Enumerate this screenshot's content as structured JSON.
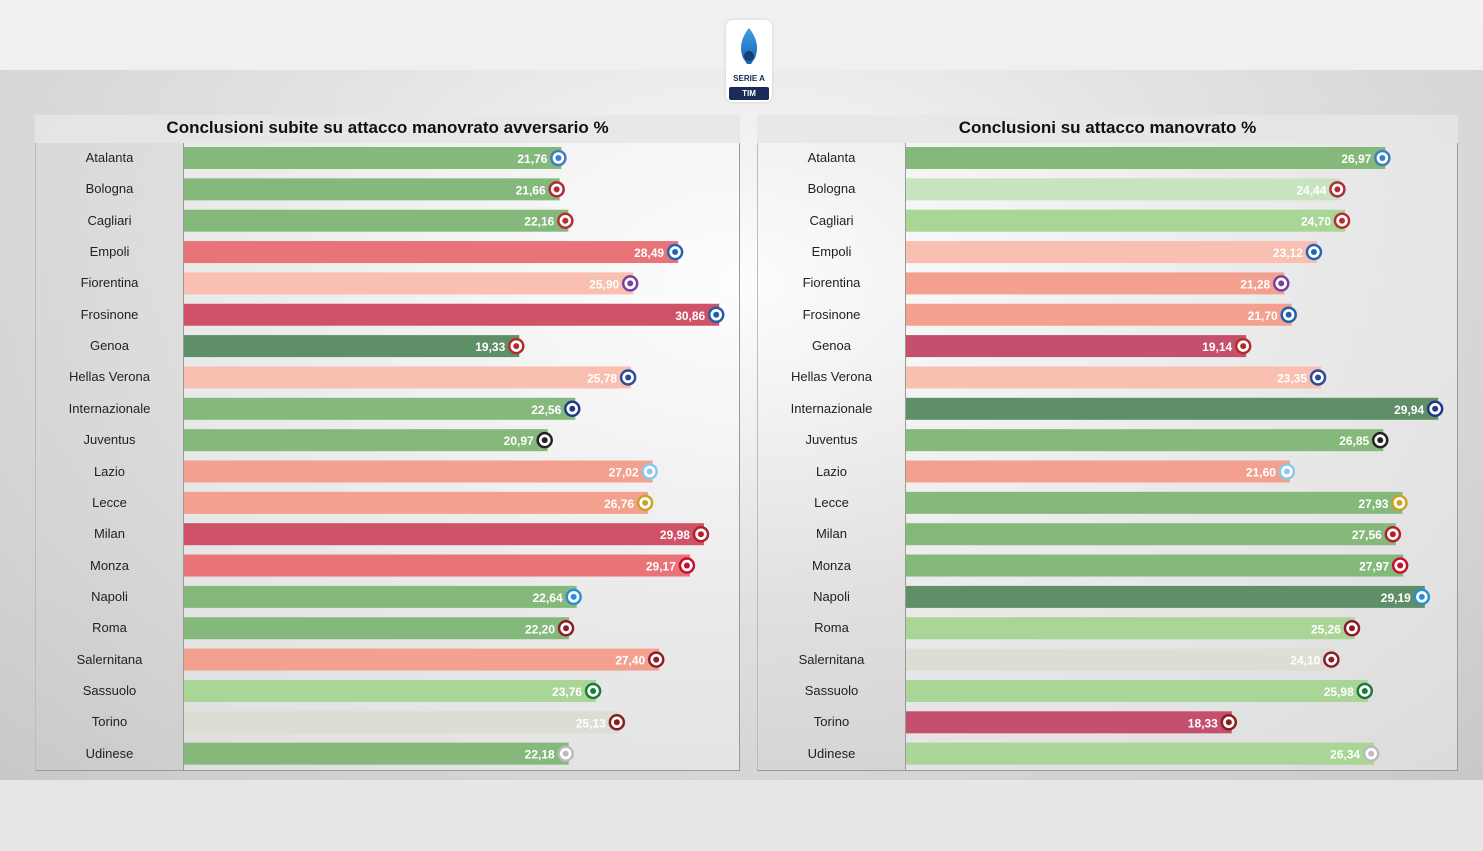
{
  "logo": {
    "name": "SERIE A",
    "sponsor": "TIM"
  },
  "chart_data": [
    {
      "type": "bar",
      "orientation": "horizontal",
      "title": "Conclusioni subite su attacco manovrato avversario %",
      "categories": [
        "Atalanta",
        "Bologna",
        "Cagliari",
        "Empoli",
        "Fiorentina",
        "Frosinone",
        "Genoa",
        "Hellas Verona",
        "Internazionale",
        "Juventus",
        "Lazio",
        "Lecce",
        "Milan",
        "Monza",
        "Napoli",
        "Roma",
        "Salernitana",
        "Sassuolo",
        "Torino",
        "Udinese"
      ],
      "values": [
        21.76,
        21.66,
        22.16,
        28.49,
        25.9,
        30.86,
        19.33,
        25.78,
        22.56,
        20.97,
        27.02,
        26.76,
        29.98,
        29.17,
        22.64,
        22.2,
        27.4,
        23.76,
        25.13,
        22.18
      ],
      "value_labels": [
        "21,76",
        "21,66",
        "22,16",
        "28,49",
        "25,90",
        "30,86",
        "19,33",
        "25,78",
        "22,56",
        "20,97",
        "27,02",
        "26,76",
        "29,98",
        "29,17",
        "22,64",
        "22,20",
        "27,40",
        "23,76",
        "25,13",
        "22,18"
      ],
      "xlim": [
        0,
        32.0
      ],
      "color_scale": "lower is better (green), higher is worse (red)"
    },
    {
      "type": "bar",
      "orientation": "horizontal",
      "title": "Conclusioni su attacco manovrato %",
      "categories": [
        "Atalanta",
        "Bologna",
        "Cagliari",
        "Empoli",
        "Fiorentina",
        "Frosinone",
        "Genoa",
        "Hellas Verona",
        "Internazionale",
        "Juventus",
        "Lazio",
        "Lecce",
        "Milan",
        "Monza",
        "Napoli",
        "Roma",
        "Salernitana",
        "Sassuolo",
        "Torino",
        "Udinese"
      ],
      "values": [
        26.97,
        24.44,
        24.7,
        23.12,
        21.28,
        21.7,
        19.14,
        23.35,
        29.94,
        26.85,
        21.6,
        27.93,
        27.56,
        27.97,
        29.19,
        25.26,
        24.1,
        25.98,
        18.33,
        26.34
      ],
      "value_labels": [
        "26,97",
        "24,44",
        "24,70",
        "23,12",
        "21,28",
        "21,70",
        "19,14",
        "23,35",
        "29,94",
        "26,85",
        "21,60",
        "27,93",
        "27,56",
        "27,97",
        "29,19",
        "25,26",
        "24,10",
        "25,98",
        "18,33",
        "26,34"
      ],
      "xlim": [
        0,
        31.0
      ],
      "color_scale": "higher is better (green), lower is worse (red)"
    }
  ],
  "colors": {
    "dark_green": "#5f8f66",
    "green": "#84b97b",
    "light_green": "#a9d596",
    "pale_green": "#c8e4bf",
    "neutral": "#dcddd3",
    "pale_red": "#f9bfb0",
    "salmon": "#f3a08f",
    "red": "#e87478",
    "crimson": "#d05268",
    "dark_crimson": "#c4506e"
  },
  "team_icon_colors": [
    "#3a7ec4",
    "#b02a37",
    "#b5302f",
    "#2563b4",
    "#7b3fa0",
    "#1f5fa8",
    "#b42c2a",
    "#2b4a9c",
    "#1e3a86",
    "#222222",
    "#8cc8ea",
    "#c9a227",
    "#b81e2a",
    "#c8102e",
    "#2a8fd8",
    "#8c1c2c",
    "#8b1e2a",
    "#1c7a3a",
    "#8a1c1c",
    "#bbbbbb"
  ]
}
